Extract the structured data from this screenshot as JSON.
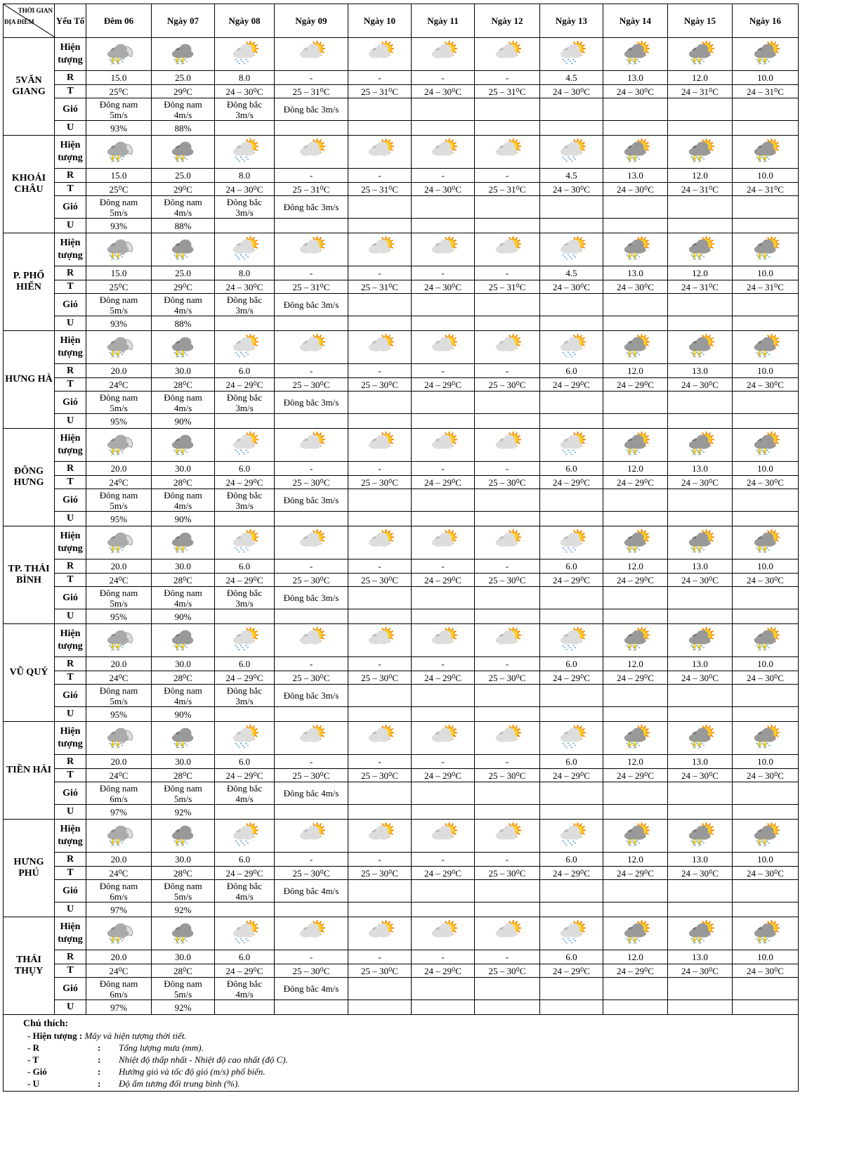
{
  "header": {
    "corner_top": "THỜI GIAN",
    "corner_bottom": "ĐỊA ĐIỂM",
    "factor": "Yếu Tố",
    "days": [
      "Đêm 06",
      "Ngày 07",
      "Ngày 08",
      "Ngày 09",
      "Ngày 10",
      "Ngày 11",
      "Ngày 12",
      "Ngày 13",
      "Ngày 14",
      "Ngày 15",
      "Ngày 16"
    ]
  },
  "factors": {
    "phenomenon": "Hiện tượng",
    "rain": "R",
    "temp": "T",
    "wind": "Gió",
    "humidity": "U"
  },
  "icons": [
    "night-thunderstorm-icon",
    "thunderstorm-rain-icon",
    "sun-cloud-rain-icon",
    "sun-cloud-icon",
    "sun-cloud-icon",
    "sun-cloud-icon",
    "sun-cloud-icon",
    "sun-cloud-rain-icon",
    "sun-thunderstorm-icon",
    "sun-thunderstorm-icon",
    "sun-thunderstorm-icon"
  ],
  "regions": [
    {
      "name": "5VĂN GIANG",
      "rain": [
        "15.0",
        "25.0",
        "8.0",
        "-",
        "-",
        "-",
        "-",
        "4.5",
        "13.0",
        "12.0",
        "10.0"
      ],
      "temp": [
        "25⁰C",
        "29⁰C",
        "24 – 30⁰C",
        "25 – 31⁰C",
        "25 – 31⁰C",
        "24 – 30⁰C",
        "25 – 31⁰C",
        "24 – 30⁰C",
        "24 – 30⁰C",
        "24 – 31⁰C",
        "24 – 31⁰C"
      ],
      "wind": [
        "Đông nam 5m/s",
        "Đông nam 4m/s",
        "Đông bắc 3m/s",
        "Đông bắc 3m/s"
      ],
      "humidity": [
        "93%",
        "88%"
      ]
    },
    {
      "name": "KHOÁI CHÂU",
      "rain": [
        "15.0",
        "25.0",
        "8.0",
        "-",
        "-",
        "-",
        "-",
        "4.5",
        "13.0",
        "12.0",
        "10.0"
      ],
      "temp": [
        "25⁰C",
        "29⁰C",
        "24 – 30⁰C",
        "25 – 31⁰C",
        "25 – 31⁰C",
        "24 – 30⁰C",
        "25 – 31⁰C",
        "24 – 30⁰C",
        "24 – 30⁰C",
        "24 – 31⁰C",
        "24 – 31⁰C"
      ],
      "wind": [
        "Đông nam 5m/s",
        "Đông nam 4m/s",
        "Đông bắc 3m/s",
        "Đông bắc 3m/s"
      ],
      "humidity": [
        "93%",
        "88%"
      ]
    },
    {
      "name": "P. PHỐ HIẾN",
      "rain": [
        "15.0",
        "25.0",
        "8.0",
        "-",
        "-",
        "-",
        "-",
        "4.5",
        "13.0",
        "12.0",
        "10.0"
      ],
      "temp": [
        "25⁰C",
        "29⁰C",
        "24 – 30⁰C",
        "25 – 31⁰C",
        "25 – 31⁰C",
        "24 – 30⁰C",
        "25 – 31⁰C",
        "24 – 30⁰C",
        "24 – 30⁰C",
        "24 – 31⁰C",
        "24 – 31⁰C"
      ],
      "wind": [
        "Đông nam 5m/s",
        "Đông nam 4m/s",
        "Đông bắc 3m/s",
        "Đông bắc 3m/s"
      ],
      "humidity": [
        "93%",
        "88%"
      ]
    },
    {
      "name": "HƯNG HÀ",
      "rain": [
        "20.0",
        "30.0",
        "6.0",
        "-",
        "-",
        "-",
        "-",
        "6.0",
        "12.0",
        "13.0",
        "10.0"
      ],
      "temp": [
        "24⁰C",
        "28⁰C",
        "24 – 29⁰C",
        "25 – 30⁰C",
        "25 – 30⁰C",
        "24 – 29⁰C",
        "25 – 30⁰C",
        "24 – 29⁰C",
        "24 – 29⁰C",
        "24 – 30⁰C",
        "24 – 30⁰C"
      ],
      "wind": [
        "Đông nam 5m/s",
        "Đông nam 4m/s",
        "Đông bắc 3m/s",
        "Đông bắc 3m/s"
      ],
      "humidity": [
        "95%",
        "90%"
      ]
    },
    {
      "name": "ĐÔNG HƯNG",
      "rain": [
        "20.0",
        "30.0",
        "6.0",
        "-",
        "-",
        "-",
        "-",
        "6.0",
        "12.0",
        "13.0",
        "10.0"
      ],
      "temp": [
        "24⁰C",
        "28⁰C",
        "24 – 29⁰C",
        "25 – 30⁰C",
        "25 – 30⁰C",
        "24 – 29⁰C",
        "25 – 30⁰C",
        "24 – 29⁰C",
        "24 – 29⁰C",
        "24 – 30⁰C",
        "24 – 30⁰C"
      ],
      "wind": [
        "Đông nam 5m/s",
        "Đông nam 4m/s",
        "Đông bắc 3m/s",
        "Đông bắc 3m/s"
      ],
      "humidity": [
        "95%",
        "90%"
      ]
    },
    {
      "name": "TP. THÁI BÌNH",
      "rain": [
        "20.0",
        "30.0",
        "6.0",
        "-",
        "-",
        "-",
        "-",
        "6.0",
        "12.0",
        "13.0",
        "10.0"
      ],
      "temp": [
        "24⁰C",
        "28⁰C",
        "24 – 29⁰C",
        "25 – 30⁰C",
        "25 – 30⁰C",
        "24 – 29⁰C",
        "25 – 30⁰C",
        "24 – 29⁰C",
        "24 – 29⁰C",
        "24 – 30⁰C",
        "24 – 30⁰C"
      ],
      "wind": [
        "Đông nam 5m/s",
        "Đông nam 4m/s",
        "Đông bắc 3m/s",
        "Đông bắc 3m/s"
      ],
      "humidity": [
        "95%",
        "90%"
      ]
    },
    {
      "name": "VŨ QUÝ",
      "rain": [
        "20.0",
        "30.0",
        "6.0",
        "-",
        "-",
        "-",
        "-",
        "6.0",
        "12.0",
        "13.0",
        "10.0"
      ],
      "temp": [
        "24⁰C",
        "28⁰C",
        "24 – 29⁰C",
        "25 – 30⁰C",
        "25 – 30⁰C",
        "24 – 29⁰C",
        "25 – 30⁰C",
        "24 – 29⁰C",
        "24 – 29⁰C",
        "24 – 30⁰C",
        "24 – 30⁰C"
      ],
      "wind": [
        "Đông nam 5m/s",
        "Đông nam 4m/s",
        "Đông bắc 3m/s",
        "Đông bắc 3m/s"
      ],
      "humidity": [
        "95%",
        "90%"
      ]
    },
    {
      "name": "TIỀN HẢI",
      "rain": [
        "20.0",
        "30.0",
        "6.0",
        "-",
        "-",
        "-",
        "-",
        "6.0",
        "12.0",
        "13.0",
        "10.0"
      ],
      "temp": [
        "24⁰C",
        "28⁰C",
        "24 – 29⁰C",
        "25 – 30⁰C",
        "25 – 30⁰C",
        "24 – 29⁰C",
        "25 – 30⁰C",
        "24 – 29⁰C",
        "24 – 29⁰C",
        "24 – 30⁰C",
        "24 – 30⁰C"
      ],
      "wind": [
        "Đông nam 6m/s",
        "Đông nam 5m/s",
        "Đông bắc 4m/s",
        "Đông bắc 4m/s"
      ],
      "humidity": [
        "97%",
        "92%"
      ]
    },
    {
      "name": "HƯNG PHÚ",
      "rain": [
        "20.0",
        "30.0",
        "6.0",
        "-",
        "-",
        "-",
        "-",
        "6.0",
        "12.0",
        "13.0",
        "10.0"
      ],
      "temp": [
        "24⁰C",
        "28⁰C",
        "24 – 29⁰C",
        "25 – 30⁰C",
        "25 – 30⁰C",
        "24 – 29⁰C",
        "25 – 30⁰C",
        "24 – 29⁰C",
        "24 – 29⁰C",
        "24 – 30⁰C",
        "24 – 30⁰C"
      ],
      "wind": [
        "Đông nam 6m/s",
        "Đông nam 5m/s",
        "Đông bắc 4m/s",
        "Đông bắc 4m/s"
      ],
      "humidity": [
        "97%",
        "92%"
      ]
    },
    {
      "name": "THÁI THỤY",
      "rain": [
        "20.0",
        "30.0",
        "6.0",
        "-",
        "-",
        "-",
        "-",
        "6.0",
        "12.0",
        "13.0",
        "10.0"
      ],
      "temp": [
        "24⁰C",
        "28⁰C",
        "24 – 29⁰C",
        "25 – 30⁰C",
        "25 – 30⁰C",
        "24 – 29⁰C",
        "25 – 30⁰C",
        "24 – 29⁰C",
        "24 – 29⁰C",
        "24 – 30⁰C",
        "24 – 30⁰C"
      ],
      "wind": [
        "Đông nam 6m/s",
        "Đông nam 5m/s",
        "Đông bắc 4m/s",
        "Đông bắc 4m/s"
      ],
      "humidity": [
        "97%",
        "92%"
      ]
    }
  ],
  "legend": {
    "title": "Chú thích:",
    "items": [
      {
        "key": "- Hiện tượng :",
        "text": "Mây và hiện tượng thời tiết."
      },
      {
        "key": "- R",
        "colon": ":",
        "text": "Tổng lượng mưa (mm)."
      },
      {
        "key": "- T",
        "colon": ":",
        "text": "Nhiệt độ thấp nhất - Nhiệt độ cao nhất (độ C)."
      },
      {
        "key": "- Gió",
        "colon": ":",
        "text": "Hướng gió và tốc độ gió (m/s) phổ biến."
      },
      {
        "key": "- U",
        "colon": ":",
        "text": "Độ ẩm tương đối trung bình (%)."
      }
    ]
  }
}
